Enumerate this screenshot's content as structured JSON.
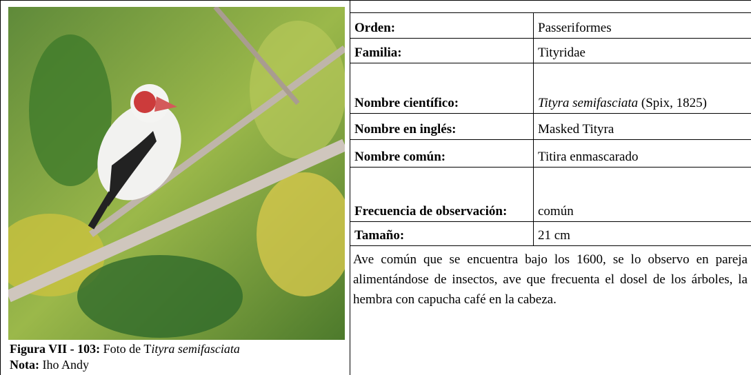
{
  "figure": {
    "caption_label": "Figura VII - 103:",
    "caption_text": "Foto de T",
    "caption_italic": "ityra semifasciata",
    "note_label": "Nota:",
    "note_text": "Iho Andy"
  },
  "table": {
    "rows": [
      {
        "label": "Orden:",
        "value": "Passeriformes"
      },
      {
        "label": "Familia:",
        "value": "Tityridae"
      },
      {
        "label": "Nombre científico:",
        "value_italic": "Tityra semifasciata",
        "value": "(Spix, 1825)"
      },
      {
        "label": "Nombre en inglés:",
        "value": "Masked Tityra"
      },
      {
        "label": "Nombre común:",
        "value": "Titira enmascarado"
      },
      {
        "label": "Frecuencia de observación:",
        "value": "común"
      },
      {
        "label": "Tamaño:",
        "value": "21 cm"
      }
    ]
  },
  "description": "Ave común que se encuentra bajo los 1600, se lo observo en pareja alimentándose de insectos, ave que frecuenta el dosel de los árboles, la hembra con capucha café en la cabeza."
}
